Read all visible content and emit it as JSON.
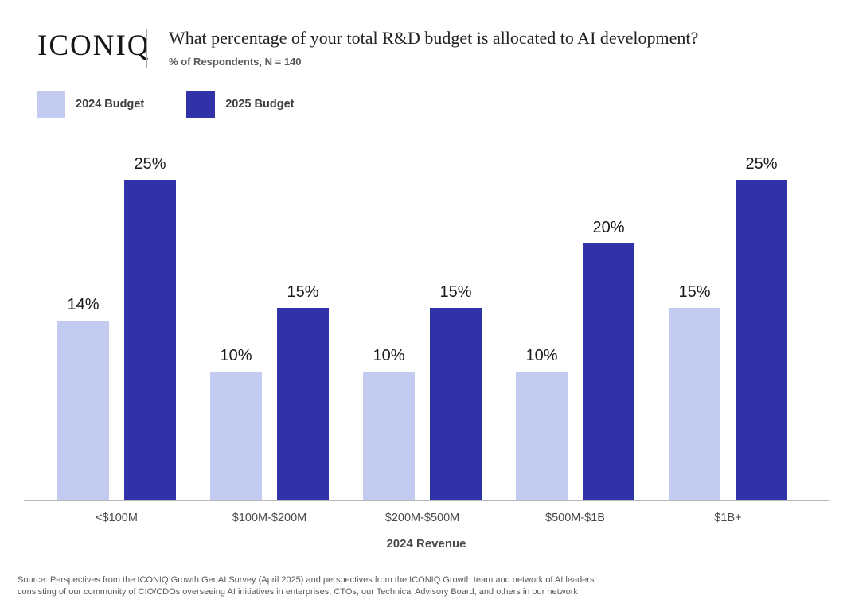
{
  "header": {
    "logo": "ICONIQ",
    "title": "What percentage of your total R&D budget is allocated to AI development?",
    "subtitle": "% of Respondents, N = 140"
  },
  "legend": [
    {
      "label": "2024 Budget",
      "color": "#c3ccf0"
    },
    {
      "label": "2025 Budget",
      "color": "#3232a8"
    }
  ],
  "colors": {
    "bar_2024": "#c3ccf0",
    "bar_2025": "#3232a8",
    "axis": "#b5b5b5"
  },
  "chart_data": {
    "type": "bar",
    "categories": [
      "<$100M",
      "$100M-$200M",
      "$200M-$500M",
      "$500M-$1B",
      "$1B+"
    ],
    "series": [
      {
        "name": "2024 Budget",
        "values": [
          14,
          10,
          10,
          10,
          15
        ]
      },
      {
        "name": "2025 Budget",
        "values": [
          25,
          15,
          15,
          20,
          25
        ]
      }
    ],
    "value_suffix": "%",
    "title": "What percentage of your total R&D budget is allocated to AI development?",
    "subtitle": "% of Respondents, N = 140",
    "xlabel": "2024 Revenue",
    "ylabel": "% of Respondents",
    "ylim": [
      0,
      26
    ],
    "grid": false,
    "legend_position": "top-left",
    "value_labels": "above-bars"
  },
  "footer": {
    "source_line1": "Source: Perspectives from the ICONIQ Growth GenAI Survey (April 2025) and perspectives from the ICONIQ Growth team and network of AI leaders",
    "source_line2": "consisting of our community of CIO/CDOs overseeing AI initiatives in enterprises, CTOs, our Technical Advisory Board, and others in our network"
  }
}
